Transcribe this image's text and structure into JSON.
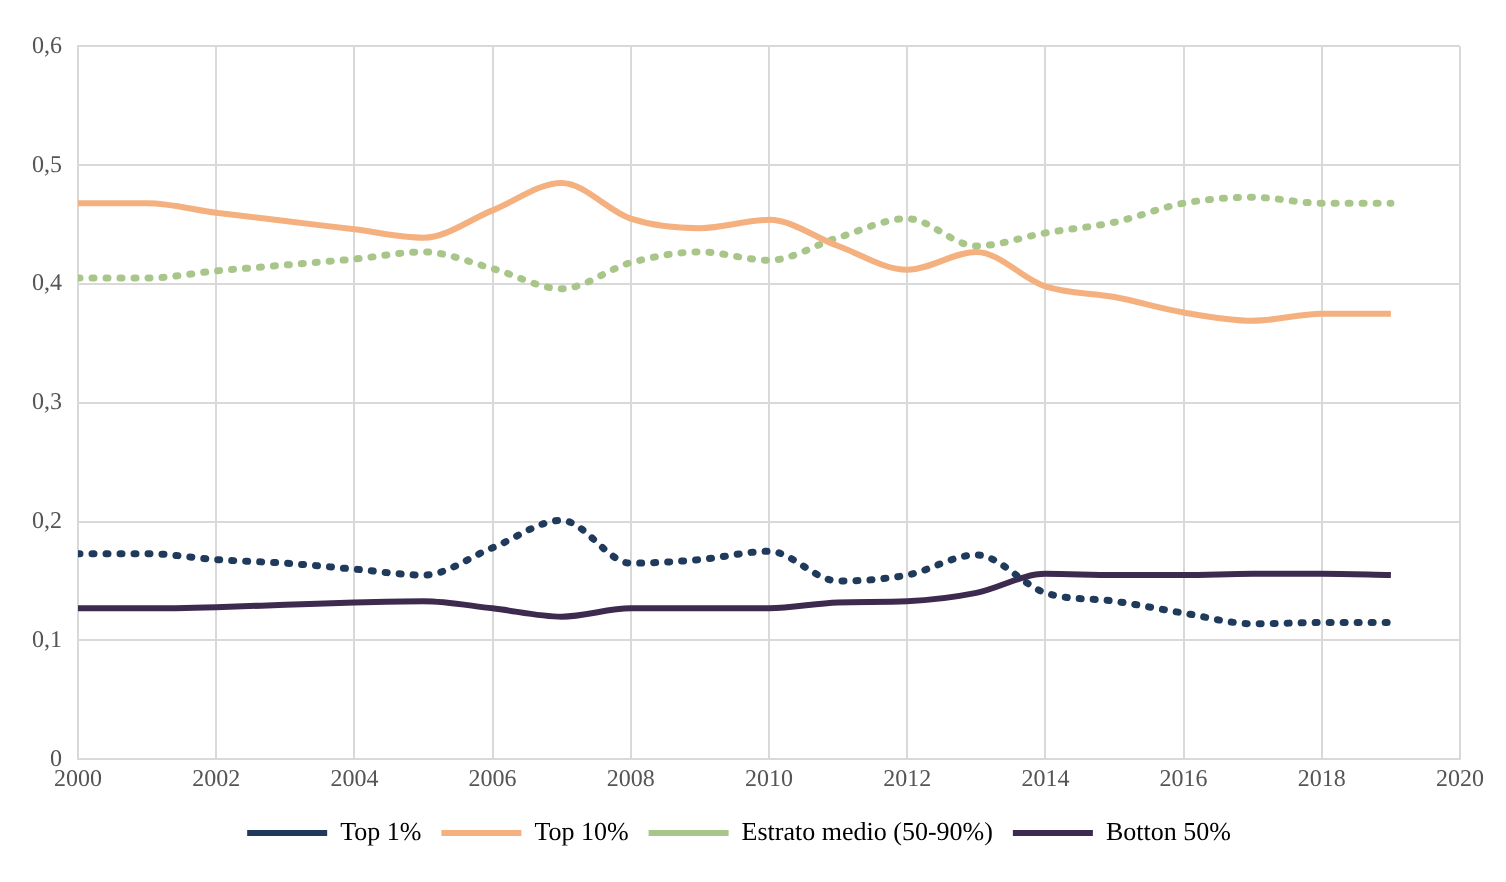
{
  "chart_data": {
    "type": "line",
    "x": [
      2000,
      2001,
      2002,
      2003,
      2004,
      2005,
      2006,
      2007,
      2008,
      2009,
      2010,
      2011,
      2012,
      2013,
      2014,
      2015,
      2016,
      2017,
      2018,
      2019
    ],
    "xlim": [
      2000,
      2020
    ],
    "xticks": [
      2000,
      2002,
      2004,
      2006,
      2008,
      2010,
      2012,
      2014,
      2016,
      2018,
      2020
    ],
    "ylim": [
      0,
      0.6
    ],
    "yticks": [
      0,
      {
        "value": 0.1,
        "label": "0,1"
      },
      {
        "value": 0.2,
        "label": "0,2"
      },
      {
        "value": 0.3,
        "label": "0,3"
      },
      {
        "value": 0.4,
        "label": "0,4"
      },
      {
        "value": 0.5,
        "label": "0,5"
      },
      {
        "value": 0.6,
        "label": "0,6"
      }
    ],
    "grid": true,
    "legend": "bottom",
    "marker": "none",
    "series": [
      {
        "name": "Top 1%",
        "color": "#1f3a5a",
        "line_style": "dotted",
        "values": [
          0.173,
          0.173,
          0.168,
          0.165,
          0.16,
          0.155,
          0.178,
          0.201,
          0.165,
          0.168,
          0.175,
          0.15,
          0.155,
          0.172,
          0.14,
          0.133,
          0.123,
          0.114,
          0.115,
          0.115
        ]
      },
      {
        "name": "Top 10%",
        "color": "#f5b07f",
        "line_style": "solid",
        "values": [
          0.468,
          0.468,
          0.46,
          0.453,
          0.446,
          0.439,
          0.462,
          0.485,
          0.455,
          0.447,
          0.454,
          0.432,
          0.412,
          0.427,
          0.398,
          0.389,
          0.376,
          0.369,
          0.375,
          0.375
        ]
      },
      {
        "name": "Estrato medio (50-90%)",
        "color": "#a9c68a",
        "line_style": "dotted",
        "values": [
          0.405,
          0.405,
          0.411,
          0.416,
          0.421,
          0.427,
          0.413,
          0.396,
          0.418,
          0.427,
          0.42,
          0.439,
          0.455,
          0.432,
          0.443,
          0.452,
          0.468,
          0.473,
          0.468,
          0.468
        ]
      },
      {
        "name": "Botton 50%",
        "color": "#3d2a4f",
        "line_style": "solid",
        "values": [
          0.127,
          0.127,
          0.128,
          0.13,
          0.132,
          0.133,
          0.127,
          0.12,
          0.127,
          0.127,
          0.127,
          0.132,
          0.133,
          0.14,
          0.156,
          0.155,
          0.155,
          0.156,
          0.156,
          0.155
        ]
      }
    ]
  }
}
